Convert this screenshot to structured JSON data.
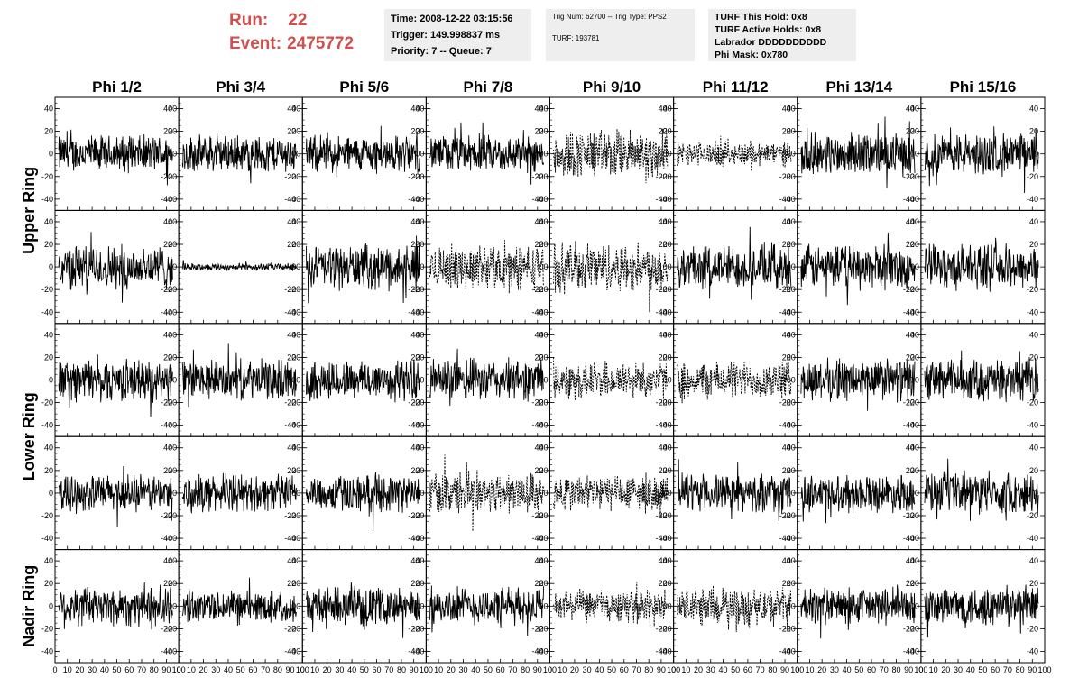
{
  "header": {
    "run_label": "Run:",
    "run_value": "22",
    "event_label": "Event:",
    "event_value": "2475772",
    "time": "Time: 2008-12-22 03:15:56",
    "trigger": "Trigger: 149.998837 ms",
    "priority": "Priority: 7 -- Queue: 7",
    "trig_num": "Trig Num: 62700 -- Trig Type: PPS2",
    "turf": "TURF: 193781",
    "turf_hold": "TURF This Hold: 0x8",
    "turf_active": "TURF Active Holds: 0x8",
    "labrador": "Labrador DDDDDDDDDD",
    "phi_mask": "Phi Mask: 0x780"
  },
  "chart_data": {
    "type": "line",
    "columns": [
      "Phi 1/2",
      "Phi 3/4",
      "Phi 5/6",
      "Phi 7/8",
      "Phi 9/10",
      "Phi 11/12",
      "Phi 13/14",
      "Phi 15/16"
    ],
    "ring_labels": [
      {
        "text": "Upper Ring",
        "rows": [
          0,
          1
        ]
      },
      {
        "text": "Lower Ring",
        "rows": [
          2,
          3
        ]
      },
      {
        "text": "Nadir Ring",
        "rows": [
          4
        ]
      }
    ],
    "xlim": [
      0,
      100
    ],
    "ylim": [
      -50,
      50
    ],
    "x_ticks": [
      0,
      10,
      20,
      30,
      40,
      50,
      60,
      70,
      80,
      90,
      100
    ],
    "y_ticks": [
      -40,
      -20,
      0,
      20,
      40
    ],
    "amplitudes": [
      [
        15,
        15,
        15,
        15,
        20,
        10,
        17,
        17
      ],
      [
        18,
        3,
        18,
        18,
        20,
        18,
        18,
        18
      ],
      [
        17,
        16,
        17,
        17,
        15,
        15,
        17,
        17
      ],
      [
        15,
        15,
        15,
        17,
        15,
        15,
        15,
        17
      ],
      [
        17,
        13,
        15,
        15,
        13,
        15,
        15,
        17
      ]
    ],
    "dashed": [
      [
        false,
        false,
        false,
        false,
        true,
        true,
        false,
        false
      ],
      [
        false,
        false,
        false,
        true,
        true,
        false,
        false,
        false
      ],
      [
        false,
        false,
        false,
        false,
        true,
        true,
        false,
        false
      ],
      [
        false,
        false,
        false,
        true,
        true,
        false,
        false,
        false
      ],
      [
        false,
        false,
        false,
        false,
        true,
        true,
        false,
        false
      ]
    ]
  }
}
